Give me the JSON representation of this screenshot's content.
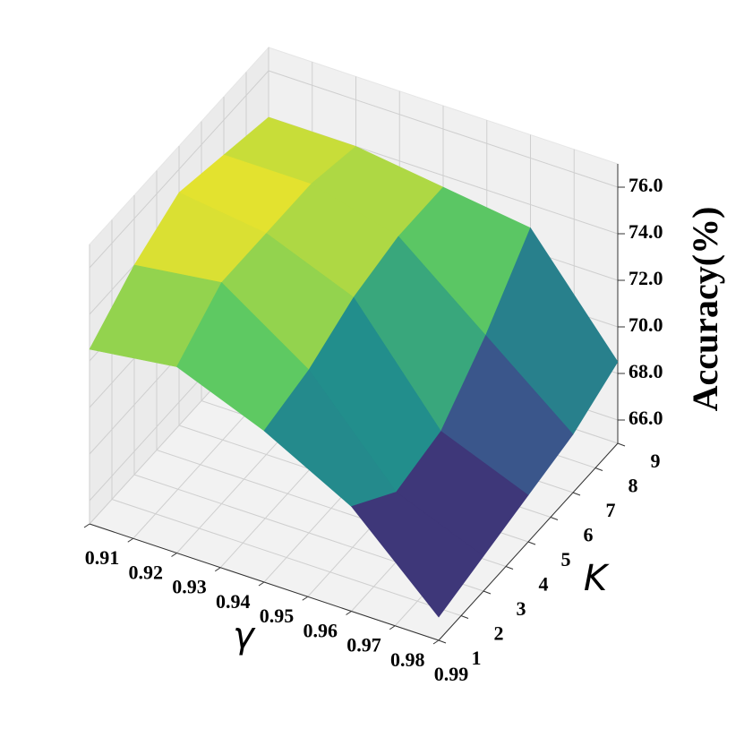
{
  "chart_data": {
    "type": "surface",
    "x": [
      0.91,
      0.93,
      0.95,
      0.97,
      0.99
    ],
    "y": [
      1,
      3,
      5,
      7,
      9
    ],
    "z": [
      [
        72.5,
        73.0,
        71.5,
        69.5,
        66.0
      ],
      [
        74.0,
        74.5,
        72.0,
        68.0,
        66.5
      ],
      [
        75.0,
        74.5,
        73.0,
        68.5,
        67.0
      ],
      [
        74.5,
        74.5,
        73.5,
        70.5,
        67.5
      ],
      [
        74.0,
        74.0,
        73.5,
        73.0,
        68.5
      ]
    ],
    "xlim": [
      0.91,
      0.99
    ],
    "xticks": [
      0.91,
      0.92,
      0.93,
      0.94,
      0.95,
      0.96,
      0.97,
      0.98,
      0.99
    ],
    "ylim": [
      1,
      9
    ],
    "yticks": [
      1,
      2,
      3,
      4,
      5,
      6,
      7,
      8,
      9
    ],
    "zlim": [
      65,
      77
    ],
    "zticks": [
      {
        "value": 66,
        "label": "66.0"
      },
      {
        "value": 68,
        "label": "68.0"
      },
      {
        "value": 70,
        "label": "70.0"
      },
      {
        "value": 72,
        "label": "72.0"
      },
      {
        "value": 74,
        "label": "74.0"
      },
      {
        "value": 76,
        "label": "76.0"
      }
    ],
    "xlabel": "γ",
    "ylabel": "K",
    "zlabel": "Accuracy(%)",
    "colormap": [
      "#440154",
      "#3b528b",
      "#21918c",
      "#5ec962",
      "#fde725"
    ],
    "grid": true
  }
}
